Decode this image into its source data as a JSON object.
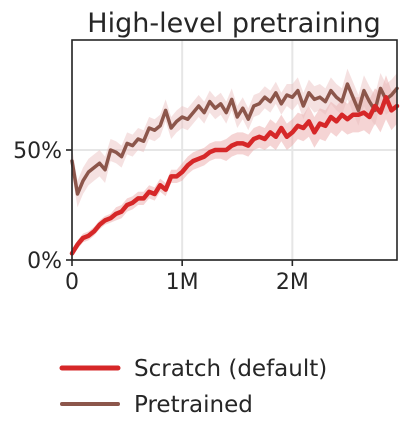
{
  "chart_data": {
    "type": "line",
    "title": "High-level pretraining",
    "xlabel": "",
    "ylabel": "",
    "xlim": [
      0,
      2950000
    ],
    "ylim": [
      0,
      100
    ],
    "x_ticks": [
      {
        "value": 0,
        "label": "0"
      },
      {
        "value": 1000000,
        "label": "1M"
      },
      {
        "value": 2000000,
        "label": "2M"
      }
    ],
    "y_ticks": [
      {
        "value": 0,
        "label": "0%"
      },
      {
        "value": 50,
        "label": "50%"
      }
    ],
    "grid": true,
    "legend_position": "below",
    "series": [
      {
        "name": "Scratch (default)",
        "color": "#d62728",
        "band_color": "#e8a0a0",
        "x": [
          0,
          50000,
          100000,
          150000,
          200000,
          250000,
          300000,
          350000,
          400000,
          450000,
          500000,
          550000,
          600000,
          650000,
          700000,
          750000,
          800000,
          850000,
          900000,
          950000,
          1000000,
          1050000,
          1100000,
          1150000,
          1200000,
          1250000,
          1300000,
          1350000,
          1400000,
          1450000,
          1500000,
          1550000,
          1600000,
          1650000,
          1700000,
          1750000,
          1800000,
          1850000,
          1900000,
          1950000,
          2000000,
          2050000,
          2100000,
          2150000,
          2200000,
          2250000,
          2300000,
          2350000,
          2400000,
          2450000,
          2500000,
          2550000,
          2600000,
          2650000,
          2700000,
          2750000,
          2800000,
          2850000,
          2900000,
          2950000
        ],
        "values": [
          3,
          7,
          10,
          11,
          13,
          16,
          18,
          19,
          21,
          22,
          25,
          26,
          28,
          28,
          31,
          30,
          34,
          32,
          38,
          38,
          40,
          43,
          45,
          46,
          47,
          49,
          50,
          50,
          50,
          52,
          53,
          53,
          52,
          55,
          56,
          55,
          58,
          56,
          60,
          56,
          58,
          61,
          60,
          63,
          58,
          62,
          61,
          65,
          63,
          66,
          64,
          66,
          66,
          67,
          65,
          70,
          67,
          74,
          68,
          70
        ],
        "band": [
          1,
          2,
          2,
          2,
          2,
          2,
          2,
          2,
          3,
          3,
          3,
          3,
          3,
          3,
          3,
          3,
          3,
          3,
          3,
          3,
          4,
          4,
          4,
          4,
          4,
          4,
          4,
          4,
          5,
          5,
          5,
          5,
          5,
          5,
          5,
          5,
          6,
          6,
          6,
          6,
          6,
          6,
          6,
          7,
          7,
          7,
          7,
          7,
          7,
          7,
          7,
          8,
          8,
          8,
          8,
          8,
          9,
          10,
          9,
          8
        ]
      },
      {
        "name": "Pretrained",
        "color": "#8c564b",
        "band_color": "#e8bcbc",
        "x": [
          0,
          50000,
          100000,
          150000,
          200000,
          250000,
          300000,
          350000,
          400000,
          450000,
          500000,
          550000,
          600000,
          650000,
          700000,
          750000,
          800000,
          850000,
          900000,
          950000,
          1000000,
          1050000,
          1100000,
          1150000,
          1200000,
          1250000,
          1300000,
          1350000,
          1400000,
          1450000,
          1500000,
          1550000,
          1600000,
          1650000,
          1700000,
          1750000,
          1800000,
          1850000,
          1900000,
          1950000,
          2000000,
          2050000,
          2100000,
          2150000,
          2200000,
          2250000,
          2300000,
          2350000,
          2400000,
          2450000,
          2500000,
          2550000,
          2600000,
          2650000,
          2700000,
          2750000,
          2800000,
          2850000,
          2900000,
          2950000
        ],
        "values": [
          45,
          30,
          36,
          40,
          42,
          44,
          41,
          50,
          49,
          47,
          53,
          52,
          55,
          54,
          60,
          59,
          61,
          68,
          60,
          63,
          65,
          64,
          67,
          70,
          67,
          72,
          69,
          71,
          67,
          73,
          65,
          69,
          64,
          70,
          71,
          74,
          72,
          76,
          71,
          75,
          74,
          77,
          70,
          76,
          73,
          74,
          72,
          77,
          74,
          72,
          80,
          74,
          68,
          77,
          72,
          68,
          78,
          73,
          75,
          78
        ],
        "band": [
          6,
          6,
          6,
          6,
          6,
          6,
          6,
          5,
          5,
          5,
          5,
          5,
          5,
          5,
          5,
          5,
          5,
          5,
          5,
          5,
          5,
          5,
          5,
          5,
          5,
          5,
          5,
          5,
          5,
          5,
          5,
          5,
          5,
          5,
          5,
          5,
          5,
          5,
          5,
          5,
          6,
          6,
          6,
          6,
          6,
          6,
          6,
          6,
          6,
          6,
          7,
          7,
          7,
          7,
          7,
          7,
          7,
          7,
          7,
          7
        ]
      }
    ]
  }
}
